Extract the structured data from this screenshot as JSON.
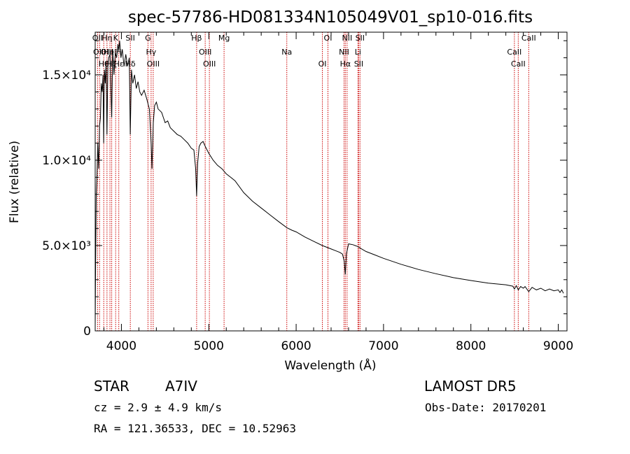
{
  "chart_data": {
    "type": "line",
    "title": "spec-57786-HD081334N105049V01_sp10-016.fits",
    "xlabel": "Wavelength (Å)",
    "ylabel": "Flux (relative)",
    "xlim": [
      3700,
      9100
    ],
    "ylim": [
      0,
      17500
    ],
    "x_ticks": [
      4000,
      5000,
      6000,
      7000,
      8000,
      9000
    ],
    "y_ticks": [
      {
        "value": 0,
        "label": "0"
      },
      {
        "value": 5000,
        "label": "5.0×10³"
      },
      {
        "value": 10000,
        "label": "1.0×10⁴"
      },
      {
        "value": 15000,
        "label": "1.5×10⁴"
      }
    ],
    "grid": false,
    "series": [
      {
        "x": [
          3700,
          3705,
          3712,
          3720,
          3730,
          3740,
          3750,
          3760,
          3770,
          3780,
          3790,
          3797,
          3805,
          3815,
          3825,
          3835,
          3845,
          3855,
          3870,
          3880,
          3889,
          3900,
          3915,
          3930,
          3945,
          3960,
          3970,
          3980,
          3995,
          4010,
          4030,
          4050,
          4070,
          4090,
          4101,
          4115,
          4130,
          4150,
          4170,
          4190,
          4210,
          4230,
          4260,
          4290,
          4320,
          4340,
          4350,
          4365,
          4380,
          4400,
          4420,
          4440,
          4460,
          4480,
          4500,
          4530,
          4560,
          4600,
          4640,
          4680,
          4720,
          4760,
          4800,
          4830,
          4850,
          4861,
          4872,
          4890,
          4910,
          4935,
          4960,
          5000,
          5050,
          5100,
          5150,
          5200,
          5250,
          5300,
          5400,
          5500,
          5600,
          5700,
          5800,
          5893,
          5950,
          6000,
          6100,
          6200,
          6300,
          6400,
          6450,
          6500,
          6530,
          6550,
          6563,
          6575,
          6600,
          6650,
          6700,
          6800,
          6900,
          7000,
          7200,
          7400,
          7600,
          7800,
          8000,
          8200,
          8400,
          8480,
          8498,
          8520,
          8542,
          8570,
          8600,
          8620,
          8662,
          8700,
          8750,
          8800,
          8850,
          8900,
          8950,
          9000,
          9020,
          9040,
          9060
        ],
        "y": [
          300,
          4000,
          8000,
          9000,
          11000,
          9500,
          12000,
          12500,
          14500,
          14000,
          15000,
          11000,
          15300,
          14500,
          15800,
          11500,
          15500,
          16000,
          16200,
          14000,
          12500,
          16500,
          15000,
          16300,
          16000,
          16800,
          16400,
          17000,
          16000,
          16500,
          15500,
          16200,
          15500,
          16000,
          11500,
          15300,
          14500,
          15000,
          14200,
          14600,
          14000,
          13800,
          14100,
          13600,
          13000,
          11000,
          9500,
          12200,
          13200,
          13400,
          13000,
          12900,
          12800,
          12500,
          12200,
          12300,
          11900,
          11700,
          11500,
          11400,
          11200,
          11000,
          10700,
          10600,
          9500,
          7900,
          9800,
          10800,
          11000,
          11100,
          10800,
          10400,
          10000,
          9700,
          9500,
          9200,
          9000,
          8800,
          8100,
          7600,
          7200,
          6800,
          6400,
          6050,
          5900,
          5800,
          5500,
          5250,
          5000,
          4800,
          4700,
          4600,
          4500,
          4100,
          3300,
          4500,
          5100,
          5050,
          4950,
          4650,
          4450,
          4250,
          3900,
          3600,
          3350,
          3120,
          2950,
          2800,
          2700,
          2620,
          2450,
          2650,
          2400,
          2600,
          2500,
          2600,
          2300,
          2550,
          2400,
          2500,
          2350,
          2450,
          2350,
          2400,
          2250,
          2400,
          2200
        ]
      }
    ],
    "lines": [
      {
        "wave": 3727,
        "labels": [
          "OII"
        ]
      },
      {
        "wave": 3750,
        "labels": [
          "OIII"
        ]
      },
      {
        "wave": 3798,
        "labels": [
          "Hθ"
        ]
      },
      {
        "wave": 3835,
        "labels": [
          "Hη",
          "OIII"
        ]
      },
      {
        "wave": 3869,
        "labels": [
          "HeI"
        ]
      },
      {
        "wave": 3889,
        "labels": [
          "Hζ"
        ]
      },
      {
        "wave": 3934,
        "labels": [
          "K"
        ]
      },
      {
        "wave": 3970,
        "labels": [
          "H",
          "Hε"
        ]
      },
      {
        "wave": 4102,
        "labels": [
          "Hδ",
          "SII"
        ]
      },
      {
        "wave": 4304,
        "labels": [
          "G"
        ]
      },
      {
        "wave": 4340,
        "labels": [
          "Hγ"
        ]
      },
      {
        "wave": 4364,
        "labels": [
          "OIII"
        ]
      },
      {
        "wave": 4861,
        "labels": [
          "Hβ"
        ]
      },
      {
        "wave": 4959,
        "labels": [
          "OIII"
        ]
      },
      {
        "wave": 5007,
        "labels": [
          "OIII"
        ]
      },
      {
        "wave": 5175,
        "labels": [
          "Mg"
        ]
      },
      {
        "wave": 5893,
        "labels": [
          "Na"
        ]
      },
      {
        "wave": 6300,
        "labels": [
          "OI"
        ]
      },
      {
        "wave": 6364,
        "labels": [
          "OI"
        ]
      },
      {
        "wave": 6548,
        "labels": [
          "NII"
        ]
      },
      {
        "wave": 6563,
        "labels": [
          "Hα"
        ]
      },
      {
        "wave": 6583,
        "labels": [
          "NII"
        ]
      },
      {
        "wave": 6707,
        "labels": [
          "Li"
        ]
      },
      {
        "wave": 6716,
        "labels": [
          "SII"
        ]
      },
      {
        "wave": 6731,
        "labels": [
          "SII"
        ]
      },
      {
        "wave": 8498,
        "labels": [
          "CaII"
        ]
      },
      {
        "wave": 8542,
        "labels": [
          "CaII"
        ]
      },
      {
        "wave": 8662,
        "labels": [
          "CaII"
        ]
      }
    ],
    "line_color": "#cc0000",
    "spectrum_color": "#000000"
  },
  "info": {
    "object_class": "STAR",
    "subclass": "A7IV",
    "survey": "LAMOST DR5",
    "cz": "cz = 2.9 ± 4.9 km/s",
    "obs_date": "Obs-Date: 20170201",
    "coords": "RA = 121.36533, DEC =  10.52963"
  }
}
